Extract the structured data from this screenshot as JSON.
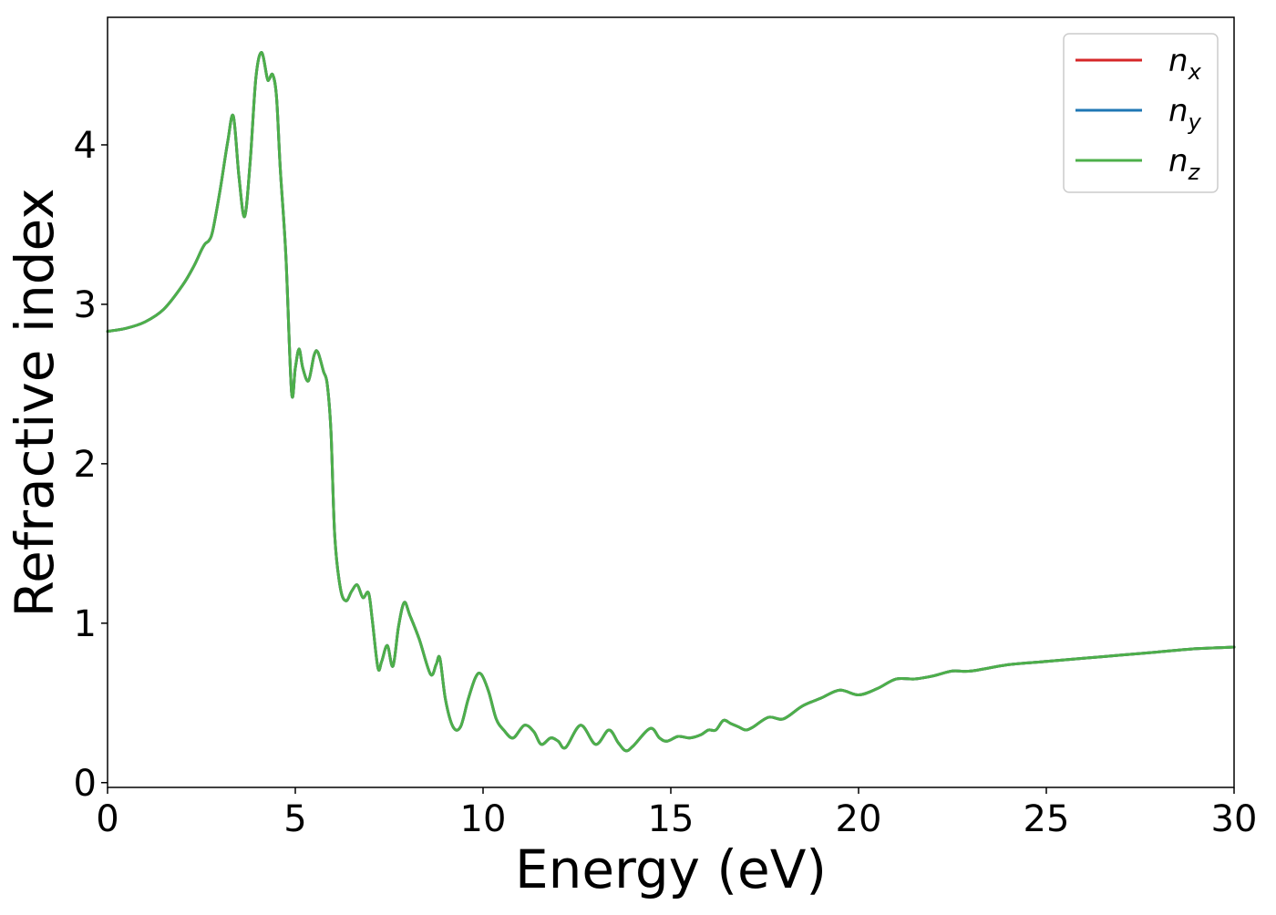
{
  "chart_data": {
    "type": "line",
    "title": "",
    "xlabel": "Energy (eV)",
    "ylabel": "Refractive index",
    "xlim": [
      0,
      30
    ],
    "ylim": [
      -0.03,
      4.8
    ],
    "xticks": [
      0,
      5,
      10,
      15,
      20,
      25,
      30
    ],
    "yticks": [
      0,
      1,
      2,
      3,
      4
    ],
    "grid": false,
    "legend_position": "top-right",
    "series": [
      {
        "name": "n",
        "subscript": "x",
        "color": "#d62728"
      },
      {
        "name": "n",
        "subscript": "y",
        "color": "#1f77b4"
      },
      {
        "name": "n",
        "subscript": "z",
        "color": "#4daf4a"
      }
    ],
    "x": [
      0,
      0.5,
      1.0,
      1.5,
      2.0,
      2.3,
      2.5,
      2.6,
      2.7,
      2.8,
      3.0,
      3.2,
      3.35,
      3.5,
      3.65,
      3.8,
      3.95,
      4.1,
      4.25,
      4.3,
      4.4,
      4.5,
      4.6,
      4.75,
      4.9,
      5.0,
      5.1,
      5.2,
      5.35,
      5.5,
      5.6,
      5.75,
      5.85,
      5.95,
      6.05,
      6.2,
      6.35,
      6.5,
      6.65,
      6.8,
      6.95,
      7.05,
      7.2,
      7.3,
      7.45,
      7.6,
      7.75,
      7.9,
      8.05,
      8.3,
      8.6,
      8.75,
      8.85,
      9.0,
      9.2,
      9.4,
      9.6,
      9.8,
      9.95,
      10.15,
      10.35,
      10.55,
      10.8,
      11.1,
      11.35,
      11.55,
      11.8,
      12.0,
      12.2,
      12.6,
      13.0,
      13.35,
      13.6,
      13.8,
      14.0,
      14.45,
      14.7,
      14.9,
      15.2,
      15.5,
      15.8,
      16.0,
      16.2,
      16.4,
      16.6,
      16.8,
      17.0,
      17.2,
      17.6,
      18.0,
      18.5,
      19.0,
      19.5,
      20.0,
      20.5,
      21.0,
      21.5,
      22.0,
      22.5,
      23.0,
      24.0,
      25.0,
      26.0,
      27.0,
      28.0,
      29.0,
      30.0
    ],
    "values": [
      2.83,
      2.85,
      2.89,
      2.97,
      3.12,
      3.24,
      3.34,
      3.38,
      3.4,
      3.46,
      3.72,
      4.02,
      4.18,
      3.8,
      3.55,
      3.9,
      4.42,
      4.58,
      4.42,
      4.41,
      4.44,
      4.3,
      3.85,
      3.3,
      2.45,
      2.6,
      2.72,
      2.6,
      2.52,
      2.68,
      2.7,
      2.58,
      2.5,
      2.2,
      1.55,
      1.22,
      1.14,
      1.2,
      1.24,
      1.16,
      1.19,
      1.02,
      0.72,
      0.76,
      0.86,
      0.73,
      0.98,
      1.13,
      1.05,
      0.9,
      0.68,
      0.74,
      0.78,
      0.52,
      0.35,
      0.35,
      0.52,
      0.66,
      0.68,
      0.57,
      0.4,
      0.33,
      0.28,
      0.36,
      0.32,
      0.24,
      0.28,
      0.26,
      0.22,
      0.36,
      0.24,
      0.33,
      0.25,
      0.2,
      0.23,
      0.34,
      0.28,
      0.26,
      0.29,
      0.28,
      0.3,
      0.33,
      0.33,
      0.39,
      0.37,
      0.35,
      0.33,
      0.35,
      0.41,
      0.4,
      0.48,
      0.53,
      0.58,
      0.55,
      0.59,
      0.65,
      0.65,
      0.67,
      0.7,
      0.7,
      0.74,
      0.76,
      0.78,
      0.8,
      0.82,
      0.84,
      0.85
    ]
  }
}
